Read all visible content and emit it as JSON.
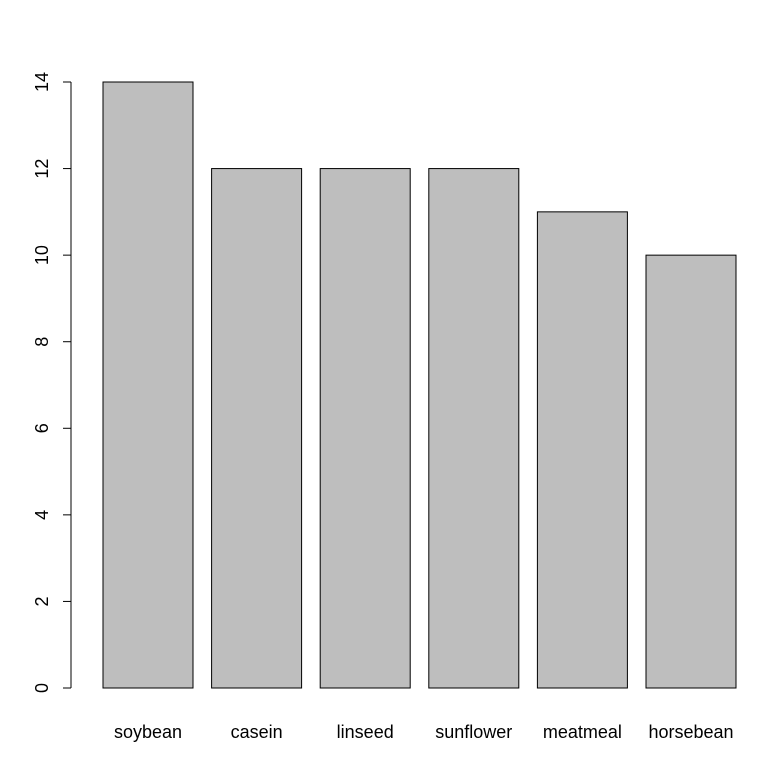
{
  "chart_data": {
    "type": "bar",
    "categories": [
      "soybean",
      "casein",
      "linseed",
      "sunflower",
      "meatmeal",
      "horsebean"
    ],
    "values": [
      14,
      12,
      12,
      12,
      11,
      10
    ],
    "title": "",
    "xlabel": "",
    "ylabel": "",
    "ylim": [
      0,
      14
    ],
    "yticks": [
      0,
      2,
      4,
      6,
      8,
      10,
      12,
      14
    ],
    "ytick_labels": [
      "0",
      "2",
      "4",
      "6",
      "8",
      "10",
      "12",
      "14"
    ],
    "grid": false,
    "bar_color": "#bebebe",
    "bar_border_color": "#000000"
  }
}
